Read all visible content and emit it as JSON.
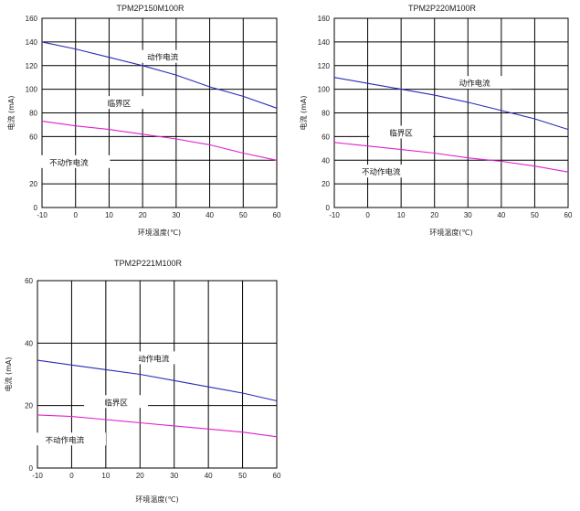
{
  "chart_data": [
    {
      "type": "line",
      "title": "TPM2P150M100R",
      "xlabel": "环境温度(℃)",
      "ylabel": "电流 (mA)",
      "xlim": [
        -10,
        60
      ],
      "ylim": [
        0,
        160
      ],
      "xticks": [
        "-10",
        "0",
        "10",
        "20",
        "30",
        "40",
        "50",
        "60"
      ],
      "yticks": [
        "0",
        "20",
        "40",
        "60",
        "80",
        "100",
        "120",
        "140",
        "160"
      ],
      "grid": true,
      "colors": {
        "upper": "#2b2bb8",
        "lower": "#e020d0"
      },
      "series": [
        {
          "x": [
            -10,
            0,
            10,
            20,
            30,
            40,
            50,
            60
          ],
          "values": [
            140,
            134,
            127,
            120,
            112,
            102,
            94,
            84
          ]
        },
        {
          "x": [
            -10,
            0,
            10,
            20,
            30,
            40,
            50,
            60
          ],
          "values": [
            73,
            69,
            66,
            62,
            58,
            53,
            46,
            40
          ]
        }
      ],
      "annotations": [
        {
          "text": "动作电流",
          "x": 26,
          "y": 127
        },
        {
          "text": "临界区",
          "x": 13,
          "y": 88
        },
        {
          "text": "不动作电流",
          "x": -2,
          "y": 38
        }
      ]
    },
    {
      "type": "line",
      "title": "TPM2P220M100R",
      "xlabel": "环境温度(℃)",
      "ylabel": "电流 (mA)",
      "xlim": [
        -10,
        60
      ],
      "ylim": [
        0,
        160
      ],
      "xticks": [
        "-10",
        "0",
        "10",
        "20",
        "30",
        "40",
        "50",
        "60"
      ],
      "yticks": [
        "0",
        "20",
        "40",
        "60",
        "80",
        "100",
        "120",
        "140",
        "160"
      ],
      "grid": true,
      "colors": {
        "upper": "#2b2bb8",
        "lower": "#e020d0"
      },
      "series": [
        {
          "x": [
            -10,
            0,
            10,
            20,
            30,
            40,
            50,
            60
          ],
          "values": [
            110,
            105,
            100,
            95,
            89,
            82,
            75,
            66
          ]
        },
        {
          "x": [
            -10,
            0,
            10,
            20,
            30,
            40,
            50,
            60
          ],
          "values": [
            55,
            52,
            49,
            46,
            42,
            39,
            35,
            30
          ]
        }
      ],
      "annotations": [
        {
          "text": "动作电流",
          "x": 32,
          "y": 105
        },
        {
          "text": "临界区",
          "x": 10,
          "y": 63
        },
        {
          "text": "不动作电流",
          "x": 4,
          "y": 30
        }
      ]
    },
    {
      "type": "line",
      "title": "TPM2P221M100R",
      "xlabel": "环境温度(℃)",
      "ylabel": "电流 (mA)",
      "xlim": [
        -10,
        60
      ],
      "ylim": [
        0,
        60
      ],
      "xticks": [
        "-10",
        "0",
        "10",
        "20",
        "30",
        "40",
        "50",
        "60"
      ],
      "yticks": [
        "0",
        "20",
        "40",
        "60"
      ],
      "grid": true,
      "colors": {
        "upper": "#2b2bb8",
        "lower": "#e020d0"
      },
      "series": [
        {
          "x": [
            -10,
            0,
            10,
            20,
            30,
            40,
            50,
            60
          ],
          "values": [
            34.5,
            33,
            31.5,
            30,
            28,
            26,
            24,
            21.5
          ]
        },
        {
          "x": [
            -10,
            0,
            10,
            20,
            30,
            40,
            50,
            60
          ],
          "values": [
            17,
            16.5,
            15.5,
            14.5,
            13.5,
            12.5,
            11.5,
            10
          ]
        }
      ],
      "annotations": [
        {
          "text": "动作电流",
          "x": 24,
          "y": 35
        },
        {
          "text": "临界区",
          "x": 13,
          "y": 21
        },
        {
          "text": "不动作电流",
          "x": -2,
          "y": 9
        }
      ]
    }
  ]
}
